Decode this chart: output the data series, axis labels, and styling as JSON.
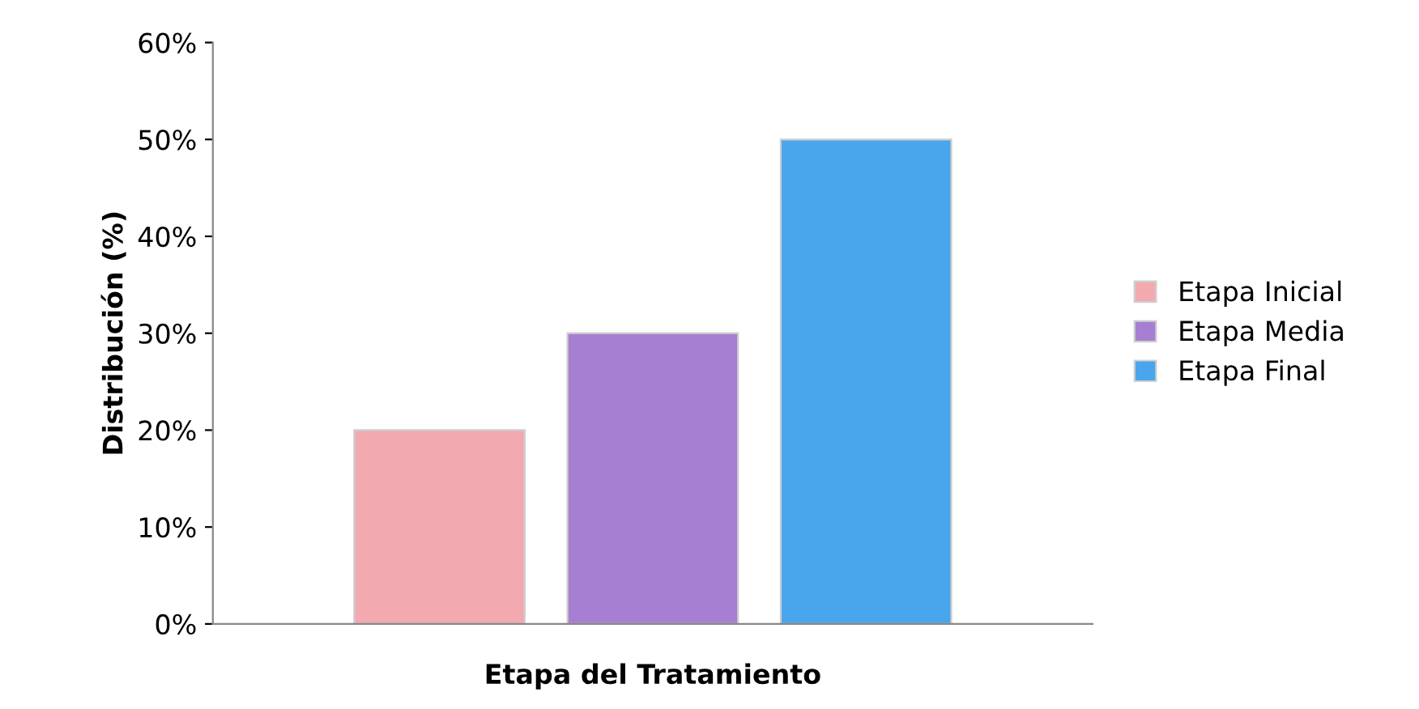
{
  "chart_data": {
    "type": "bar",
    "xlabel": "Etapa del Tratamiento",
    "ylabel": "Distribución (%)",
    "categories": [
      null
    ],
    "series": [
      {
        "name": "Etapa Inicial",
        "color": "#f2a9b0",
        "values": [
          20
        ]
      },
      {
        "name": "Etapa Media",
        "color": "#a77fd2",
        "values": [
          30
        ]
      },
      {
        "name": "Etapa Final",
        "color": "#4aa6ec",
        "values": [
          50
        ]
      }
    ],
    "ylim": [
      0,
      60
    ],
    "yticks": [
      {
        "value": 0,
        "label": "0%"
      },
      {
        "value": 10,
        "label": "10%"
      },
      {
        "value": 20,
        "label": "20%"
      },
      {
        "value": 30,
        "label": "30%"
      },
      {
        "value": 40,
        "label": "40%"
      },
      {
        "value": 50,
        "label": "50%"
      },
      {
        "value": 60,
        "label": "60%"
      }
    ],
    "grid": false,
    "legend": "right"
  }
}
